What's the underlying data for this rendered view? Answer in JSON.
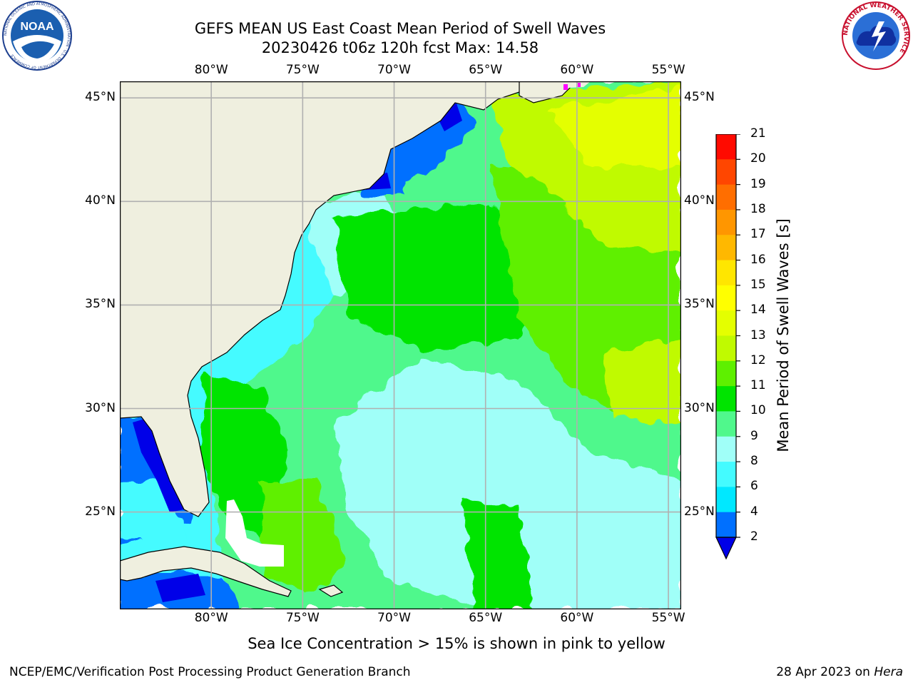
{
  "header": {
    "title_line1": "GEFS MEAN US East Coast Mean Period of Swell Waves",
    "title_line2": "20230426 t06z 120h fcst   Max: 14.58"
  },
  "logos": {
    "noaa_text": "NOAA",
    "noaa_ring": "NATIONAL OCEANIC AND ATMOSPHERIC ADMINISTRATION · U.S. DEPARTMENT OF COMMERCE",
    "nws_ring": "NATIONAL WEATHER SERVICE"
  },
  "map": {
    "lon_labels": [
      "80°W",
      "75°W",
      "70°W",
      "65°W",
      "60°W",
      "55°W"
    ],
    "lat_labels": [
      "45°N",
      "40°N",
      "35°N",
      "30°N",
      "25°N"
    ],
    "lon_range": [
      -85,
      -54.3
    ],
    "lat_range": [
      20.3,
      45.8
    ],
    "grid": true,
    "colors": {
      "land": "#efefdf",
      "grid": "#b0b0b0"
    }
  },
  "colorbar": {
    "label": "Mean Period of Swell Waves [s]",
    "ticks": [
      "21",
      "20",
      "19",
      "18",
      "17",
      "16",
      "15",
      "14",
      "13",
      "12",
      "11",
      "10",
      "9",
      "8",
      "6",
      "4",
      "2"
    ],
    "bins": [
      {
        "from": 2,
        "to": 4,
        "color": "#0070ff"
      },
      {
        "from": 4,
        "to": 6,
        "color": "#00e8ff"
      },
      {
        "from": 6,
        "to": 8,
        "color": "#44fbff"
      },
      {
        "from": 8,
        "to": 9,
        "color": "#a0fff8"
      },
      {
        "from": 9,
        "to": 10,
        "color": "#50f88c"
      },
      {
        "from": 10,
        "to": 11,
        "color": "#00e400"
      },
      {
        "from": 11,
        "to": 12,
        "color": "#5ef000"
      },
      {
        "from": 12,
        "to": 13,
        "color": "#c0fa00"
      },
      {
        "from": 13,
        "to": 14,
        "color": "#e4ff00"
      },
      {
        "from": 14,
        "to": 15,
        "color": "#ffff00"
      },
      {
        "from": 15,
        "to": 16,
        "color": "#ffe600"
      },
      {
        "from": 16,
        "to": 17,
        "color": "#ffb800"
      },
      {
        "from": 17,
        "to": 18,
        "color": "#ff9600"
      },
      {
        "from": 18,
        "to": 19,
        "color": "#ff6e00"
      },
      {
        "from": 19,
        "to": 20,
        "color": "#ff4600"
      },
      {
        "from": 20,
        "to": 21,
        "color": "#ff0a00"
      }
    ],
    "under_color": "#0000e8"
  },
  "caption": "Sea Ice Concentration > 15% is shown in pink to yellow",
  "footer": {
    "left": "NCEP/EMC/Verification Post Processing Product Generation Branch",
    "right_date": "28 Apr 2023 on ",
    "right_machine": "Hera"
  }
}
